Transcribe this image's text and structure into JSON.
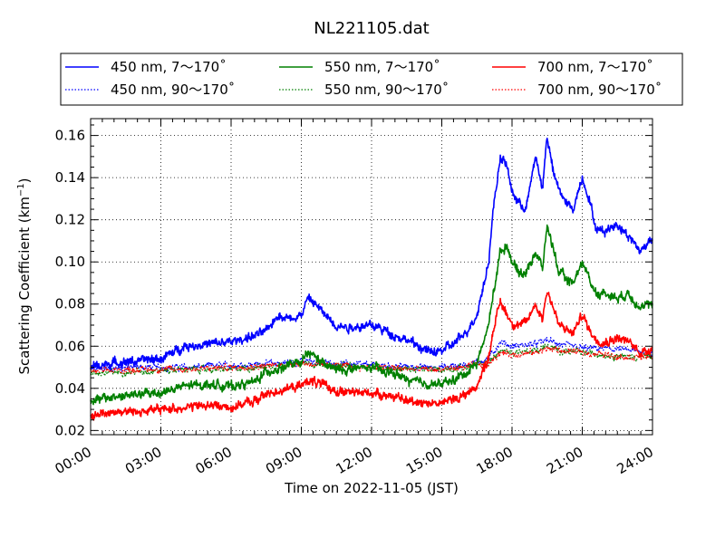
{
  "chart_data": {
    "type": "line",
    "title": "NL221105.dat",
    "xlabel": "Time on 2022-11-05 (JST)",
    "ylabel_main": "Scattering Coefficient (km",
    "ylabel_sup": "−1",
    "ylabel_end": ")",
    "xlim": [
      0,
      24
    ],
    "ylim": [
      0.018,
      0.168
    ],
    "x_ticks": [
      0,
      3,
      6,
      9,
      12,
      15,
      18,
      21,
      24
    ],
    "x_tick_labels": [
      "00:00",
      "03:00",
      "06:00",
      "09:00",
      "12:00",
      "15:00",
      "18:00",
      "21:00",
      "24:00"
    ],
    "y_ticks": [
      0.02,
      0.04,
      0.06,
      0.08,
      0.1,
      0.12,
      0.14,
      0.16
    ],
    "y_tick_labels": [
      "0.02",
      "0.04",
      "0.06",
      "0.08",
      "0.10",
      "0.12",
      "0.14",
      "0.16"
    ],
    "grid": true,
    "legend_position": "top",
    "series": [
      {
        "name": "450 nm, 7～170˚",
        "color": "#0000ff",
        "style": "solid",
        "x": [
          0,
          1,
          2,
          3,
          4,
          5,
          6,
          7,
          7.5,
          8,
          8.5,
          9,
          9.3,
          9.6,
          10,
          10.5,
          11,
          12,
          12.5,
          13,
          13.5,
          14,
          14.5,
          15,
          15.5,
          16,
          16.5,
          17,
          17.2,
          17.5,
          17.8,
          18,
          18.3,
          18.6,
          19,
          19.3,
          19.5,
          19.8,
          20,
          20.3,
          20.6,
          21,
          21.3,
          21.6,
          22,
          22.5,
          23,
          23.5,
          24
        ],
        "y": [
          0.05,
          0.052,
          0.053,
          0.054,
          0.06,
          0.061,
          0.062,
          0.065,
          0.067,
          0.075,
          0.073,
          0.075,
          0.083,
          0.08,
          0.075,
          0.07,
          0.069,
          0.07,
          0.068,
          0.065,
          0.063,
          0.06,
          0.057,
          0.058,
          0.061,
          0.066,
          0.075,
          0.1,
          0.125,
          0.15,
          0.145,
          0.133,
          0.128,
          0.125,
          0.15,
          0.135,
          0.16,
          0.14,
          0.135,
          0.128,
          0.125,
          0.14,
          0.13,
          0.115,
          0.115,
          0.118,
          0.112,
          0.105,
          0.112
        ]
      },
      {
        "name": "450 nm, 90～170˚",
        "color": "#0000ff",
        "style": "dotted",
        "x": [
          0,
          2,
          4,
          6,
          8,
          9,
          10,
          12,
          14,
          15,
          16,
          17,
          17.5,
          18,
          19,
          19.5,
          20,
          21,
          22,
          23,
          24
        ],
        "y": [
          0.049,
          0.05,
          0.05,
          0.051,
          0.052,
          0.053,
          0.052,
          0.051,
          0.05,
          0.05,
          0.051,
          0.054,
          0.062,
          0.06,
          0.061,
          0.063,
          0.061,
          0.059,
          0.059,
          0.058,
          0.057
        ]
      },
      {
        "name": "550 nm, 7～170˚",
        "color": "#008000",
        "style": "solid",
        "x": [
          0,
          1,
          2,
          3,
          4,
          5,
          6,
          7,
          7.5,
          8,
          8.5,
          9,
          9.3,
          9.6,
          10,
          10.5,
          11,
          12,
          12.5,
          13,
          13.5,
          14,
          14.5,
          15,
          15.5,
          16,
          16.5,
          17,
          17.2,
          17.5,
          17.8,
          18,
          18.3,
          18.6,
          19,
          19.3,
          19.5,
          19.8,
          20,
          20.3,
          20.6,
          21,
          21.3,
          21.6,
          22,
          22.5,
          23,
          23.5,
          24
        ],
        "y": [
          0.034,
          0.036,
          0.037,
          0.038,
          0.041,
          0.042,
          0.041,
          0.043,
          0.048,
          0.049,
          0.051,
          0.052,
          0.057,
          0.055,
          0.051,
          0.049,
          0.049,
          0.05,
          0.048,
          0.047,
          0.044,
          0.043,
          0.042,
          0.042,
          0.044,
          0.047,
          0.052,
          0.07,
          0.085,
          0.105,
          0.108,
          0.1,
          0.095,
          0.095,
          0.105,
          0.097,
          0.117,
          0.105,
          0.095,
          0.092,
          0.09,
          0.1,
          0.092,
          0.085,
          0.085,
          0.083,
          0.085,
          0.078,
          0.08
        ]
      },
      {
        "name": "550 nm, 90～170˚",
        "color": "#008000",
        "style": "dotted",
        "x": [
          0,
          2,
          4,
          6,
          8,
          9,
          10,
          12,
          14,
          15,
          16,
          17,
          17.5,
          18,
          19,
          19.5,
          20,
          21,
          22,
          23,
          24
        ],
        "y": [
          0.047,
          0.048,
          0.049,
          0.049,
          0.051,
          0.052,
          0.051,
          0.05,
          0.049,
          0.049,
          0.05,
          0.052,
          0.058,
          0.057,
          0.058,
          0.06,
          0.058,
          0.057,
          0.056,
          0.055,
          0.055
        ]
      },
      {
        "name": "700 nm, 7～170˚",
        "color": "#ff0000",
        "style": "solid",
        "x": [
          0,
          1,
          2,
          3,
          4,
          5,
          6,
          7,
          7.5,
          8,
          8.5,
          9,
          9.3,
          9.6,
          10,
          10.5,
          11,
          12,
          12.5,
          13,
          13.5,
          14,
          14.5,
          15,
          15.5,
          16,
          16.5,
          17,
          17.2,
          17.5,
          17.8,
          18,
          18.3,
          18.6,
          19,
          19.3,
          19.5,
          19.8,
          20,
          20.3,
          20.6,
          21,
          21.3,
          21.6,
          22,
          22.5,
          23,
          23.5,
          24
        ],
        "y": [
          0.027,
          0.029,
          0.029,
          0.03,
          0.031,
          0.032,
          0.031,
          0.034,
          0.037,
          0.039,
          0.04,
          0.041,
          0.044,
          0.043,
          0.041,
          0.039,
          0.038,
          0.038,
          0.037,
          0.036,
          0.034,
          0.034,
          0.033,
          0.033,
          0.035,
          0.037,
          0.041,
          0.055,
          0.068,
          0.081,
          0.075,
          0.071,
          0.07,
          0.071,
          0.08,
          0.073,
          0.087,
          0.077,
          0.07,
          0.068,
          0.066,
          0.075,
          0.068,
          0.063,
          0.062,
          0.064,
          0.062,
          0.057,
          0.059
        ]
      },
      {
        "name": "700 nm, 90～170˚",
        "color": "#ff0000",
        "style": "dotted",
        "x": [
          0,
          2,
          4,
          6,
          8,
          9,
          10,
          12,
          14,
          15,
          16,
          17,
          17.5,
          18,
          19,
          19.5,
          20,
          21,
          22,
          23,
          24
        ],
        "y": [
          0.048,
          0.049,
          0.049,
          0.05,
          0.051,
          0.052,
          0.051,
          0.05,
          0.049,
          0.049,
          0.05,
          0.052,
          0.057,
          0.056,
          0.057,
          0.059,
          0.058,
          0.057,
          0.056,
          0.055,
          0.055
        ]
      }
    ]
  }
}
